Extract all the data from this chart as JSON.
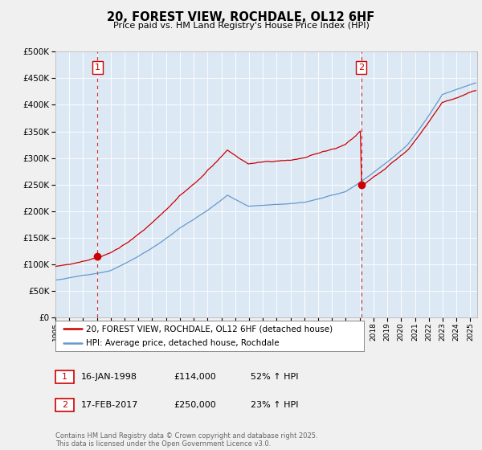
{
  "title": "20, FOREST VIEW, ROCHDALE, OL12 6HF",
  "subtitle": "Price paid vs. HM Land Registry's House Price Index (HPI)",
  "ytick_values": [
    0,
    50000,
    100000,
    150000,
    200000,
    250000,
    300000,
    350000,
    400000,
    450000,
    500000
  ],
  "ylim": [
    0,
    500000
  ],
  "xlim_start": 1995.0,
  "xlim_end": 2025.5,
  "red_color": "#cc0000",
  "blue_color": "#6699cc",
  "plot_bg_color": "#dce9f5",
  "background_color": "#f0f0f0",
  "purchase1_x": 1998.04,
  "purchase1_y": 114000,
  "purchase1_label": "1",
  "purchase2_x": 2017.12,
  "purchase2_y": 250000,
  "purchase2_label": "2",
  "legend_line1": "20, FOREST VIEW, ROCHDALE, OL12 6HF (detached house)",
  "legend_line2": "HPI: Average price, detached house, Rochdale",
  "table_row1_num": "1",
  "table_row1_date": "16-JAN-1998",
  "table_row1_price": "£114,000",
  "table_row1_hpi": "52% ↑ HPI",
  "table_row2_num": "2",
  "table_row2_date": "17-FEB-2017",
  "table_row2_price": "£250,000",
  "table_row2_hpi": "23% ↑ HPI",
  "footer": "Contains HM Land Registry data © Crown copyright and database right 2025.\nThis data is licensed under the Open Government Licence v3.0."
}
